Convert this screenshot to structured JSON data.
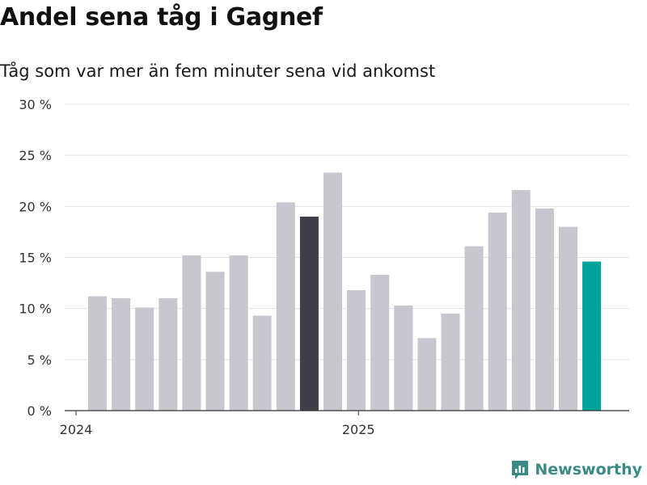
{
  "title": "Andel sena tåg i Gagnef",
  "subtitle": "Tåg som var mer än fem minuter sena vid ankomst",
  "brand": "Newsworthy",
  "chart_data": {
    "type": "bar",
    "ylabel": "",
    "xlabel": "",
    "ylim": [
      0,
      30
    ],
    "yticks": [
      0,
      5,
      10,
      15,
      20,
      25,
      30
    ],
    "ytick_labels": [
      "0 %",
      "5 %",
      "10 %",
      "15 %",
      "20 %",
      "25 %",
      "30 %"
    ],
    "xtick_labels": [
      {
        "label": "2024",
        "index": 0
      },
      {
        "label": "2025",
        "index": 12
      }
    ],
    "categories": [
      "2024-01",
      "2024-02",
      "2024-03",
      "2024-04",
      "2024-05",
      "2024-06",
      "2024-07",
      "2024-08",
      "2024-09",
      "2024-10",
      "2024-11",
      "2024-12",
      "2025-01",
      "2025-02",
      "2025-03",
      "2025-04",
      "2025-05",
      "2025-06",
      "2025-07",
      "2025-08",
      "2025-09",
      "2025-10"
    ],
    "values": [
      11.2,
      11.0,
      10.1,
      11.0,
      15.2,
      13.6,
      15.2,
      9.3,
      20.4,
      19.0,
      23.3,
      11.8,
      13.3,
      10.3,
      7.1,
      9.5,
      16.1,
      19.4,
      21.6,
      19.8,
      18.0,
      14.6
    ],
    "highlight": [
      {
        "index": 9,
        "color": "#3f3d4a"
      },
      {
        "index": 21,
        "color": "#00a39a"
      }
    ],
    "bar_color": "#c8c7cf",
    "grid": true
  },
  "colors": {
    "bar": "#c8c7cf",
    "highlight_dark": "#3f3d4a",
    "highlight_accent": "#00a39a",
    "brand": "#3a8a86"
  }
}
